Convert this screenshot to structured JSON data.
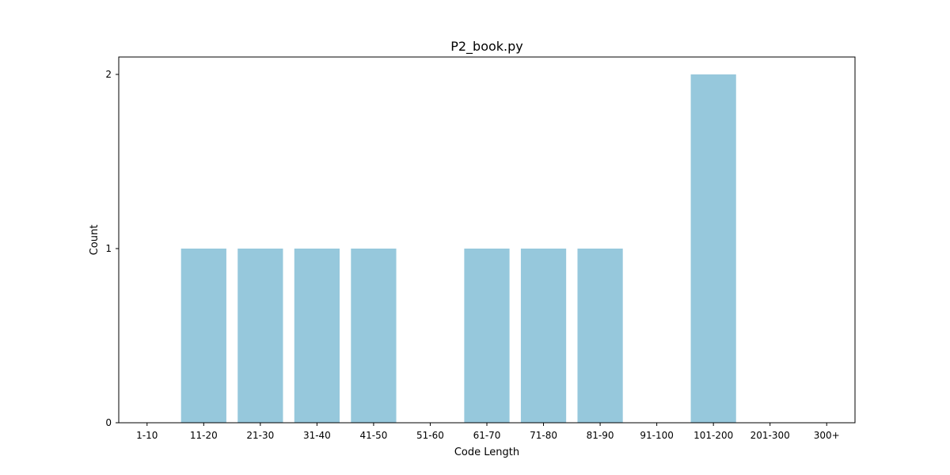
{
  "chart_data": {
    "type": "bar",
    "title": "P2_book.py",
    "xlabel": "Code Length",
    "ylabel": "Count",
    "categories": [
      "1-10",
      "11-20",
      "21-30",
      "31-40",
      "41-50",
      "51-60",
      "61-70",
      "71-80",
      "81-90",
      "91-100",
      "101-200",
      "201-300",
      "300+"
    ],
    "values": [
      0,
      1,
      1,
      1,
      1,
      0,
      1,
      1,
      1,
      0,
      2,
      0,
      0
    ],
    "yticks": [
      "0",
      "1",
      "2"
    ],
    "ylim": [
      0,
      2.1
    ],
    "grid": false,
    "bar_color": "#96c8dc"
  }
}
